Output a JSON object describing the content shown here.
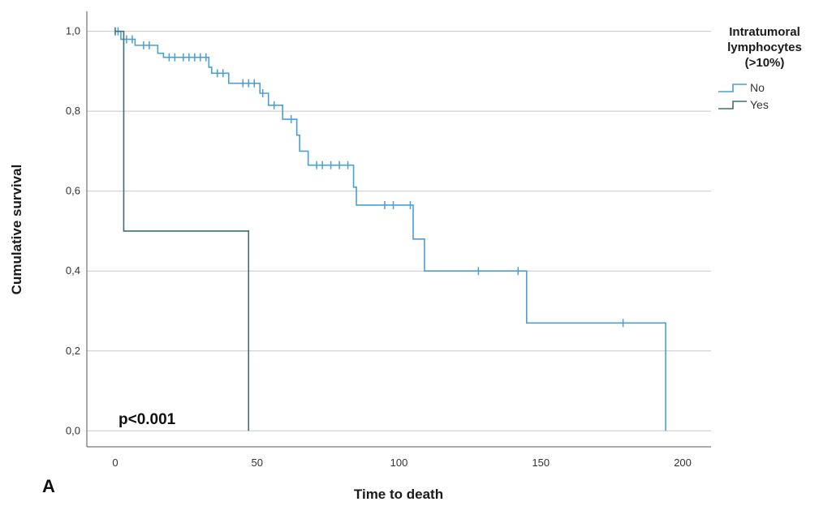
{
  "chart_data": {
    "type": "line",
    "subtype": "kaplan-meier step",
    "xlabel": "Time to death",
    "ylabel": "Cumulative survival",
    "xlim": [
      -10,
      210
    ],
    "ylim": [
      -0.04,
      1.05
    ],
    "x_ticks": [
      0,
      50,
      100,
      150,
      200
    ],
    "x_tick_labels": [
      "0",
      "50",
      "100",
      "150",
      "200"
    ],
    "y_ticks": [
      0.0,
      0.2,
      0.4,
      0.6,
      0.8,
      1.0
    ],
    "y_tick_labels": [
      "0,0",
      "0,2",
      "0,4",
      "0,6",
      "0,8",
      "1,0"
    ],
    "grid": "horizontal",
    "legend": {
      "title_lines": [
        "Intratumoral",
        "lymphocytes",
        "(>10%)"
      ],
      "placement": "top-right"
    },
    "annotation": "p<0.001",
    "panel_label": "A",
    "series": [
      {
        "name": "No",
        "color": "#4a9fd4",
        "steps": [
          [
            0,
            1.0
          ],
          [
            2,
            0.98
          ],
          [
            7,
            0.965
          ],
          [
            15,
            0.945
          ],
          [
            17,
            0.935
          ],
          [
            33,
            0.91
          ],
          [
            34,
            0.895
          ],
          [
            40,
            0.87
          ],
          [
            44,
            0.87
          ],
          [
            51,
            0.845
          ],
          [
            54,
            0.815
          ],
          [
            59,
            0.78
          ],
          [
            64,
            0.74
          ],
          [
            65,
            0.7
          ],
          [
            68,
            0.665
          ],
          [
            84,
            0.61
          ],
          [
            85,
            0.565
          ],
          [
            105,
            0.48
          ],
          [
            109,
            0.4
          ],
          [
            145,
            0.27
          ],
          [
            194,
            0.0
          ]
        ],
        "censored": [
          [
            1,
            1.0
          ],
          [
            4,
            0.98
          ],
          [
            6,
            0.98
          ],
          [
            10,
            0.965
          ],
          [
            12,
            0.965
          ],
          [
            19,
            0.935
          ],
          [
            21,
            0.935
          ],
          [
            24,
            0.935
          ],
          [
            26,
            0.935
          ],
          [
            28,
            0.935
          ],
          [
            30,
            0.935
          ],
          [
            32,
            0.935
          ],
          [
            36,
            0.895
          ],
          [
            38,
            0.895
          ],
          [
            45,
            0.87
          ],
          [
            47,
            0.87
          ],
          [
            49,
            0.87
          ],
          [
            52,
            0.845
          ],
          [
            56,
            0.815
          ],
          [
            62,
            0.78
          ],
          [
            71,
            0.665
          ],
          [
            73,
            0.665
          ],
          [
            76,
            0.665
          ],
          [
            79,
            0.665
          ],
          [
            82,
            0.665
          ],
          [
            95,
            0.565
          ],
          [
            98,
            0.565
          ],
          [
            104,
            0.565
          ],
          [
            128,
            0.4
          ],
          [
            142,
            0.4
          ],
          [
            179,
            0.27
          ]
        ]
      },
      {
        "name": "Yes",
        "color": "#3e6e70",
        "steps": [
          [
            0,
            1.0
          ],
          [
            3,
            0.5
          ],
          [
            47,
            0.0
          ]
        ],
        "censored": [
          [
            0,
            1.0
          ]
        ]
      }
    ]
  }
}
